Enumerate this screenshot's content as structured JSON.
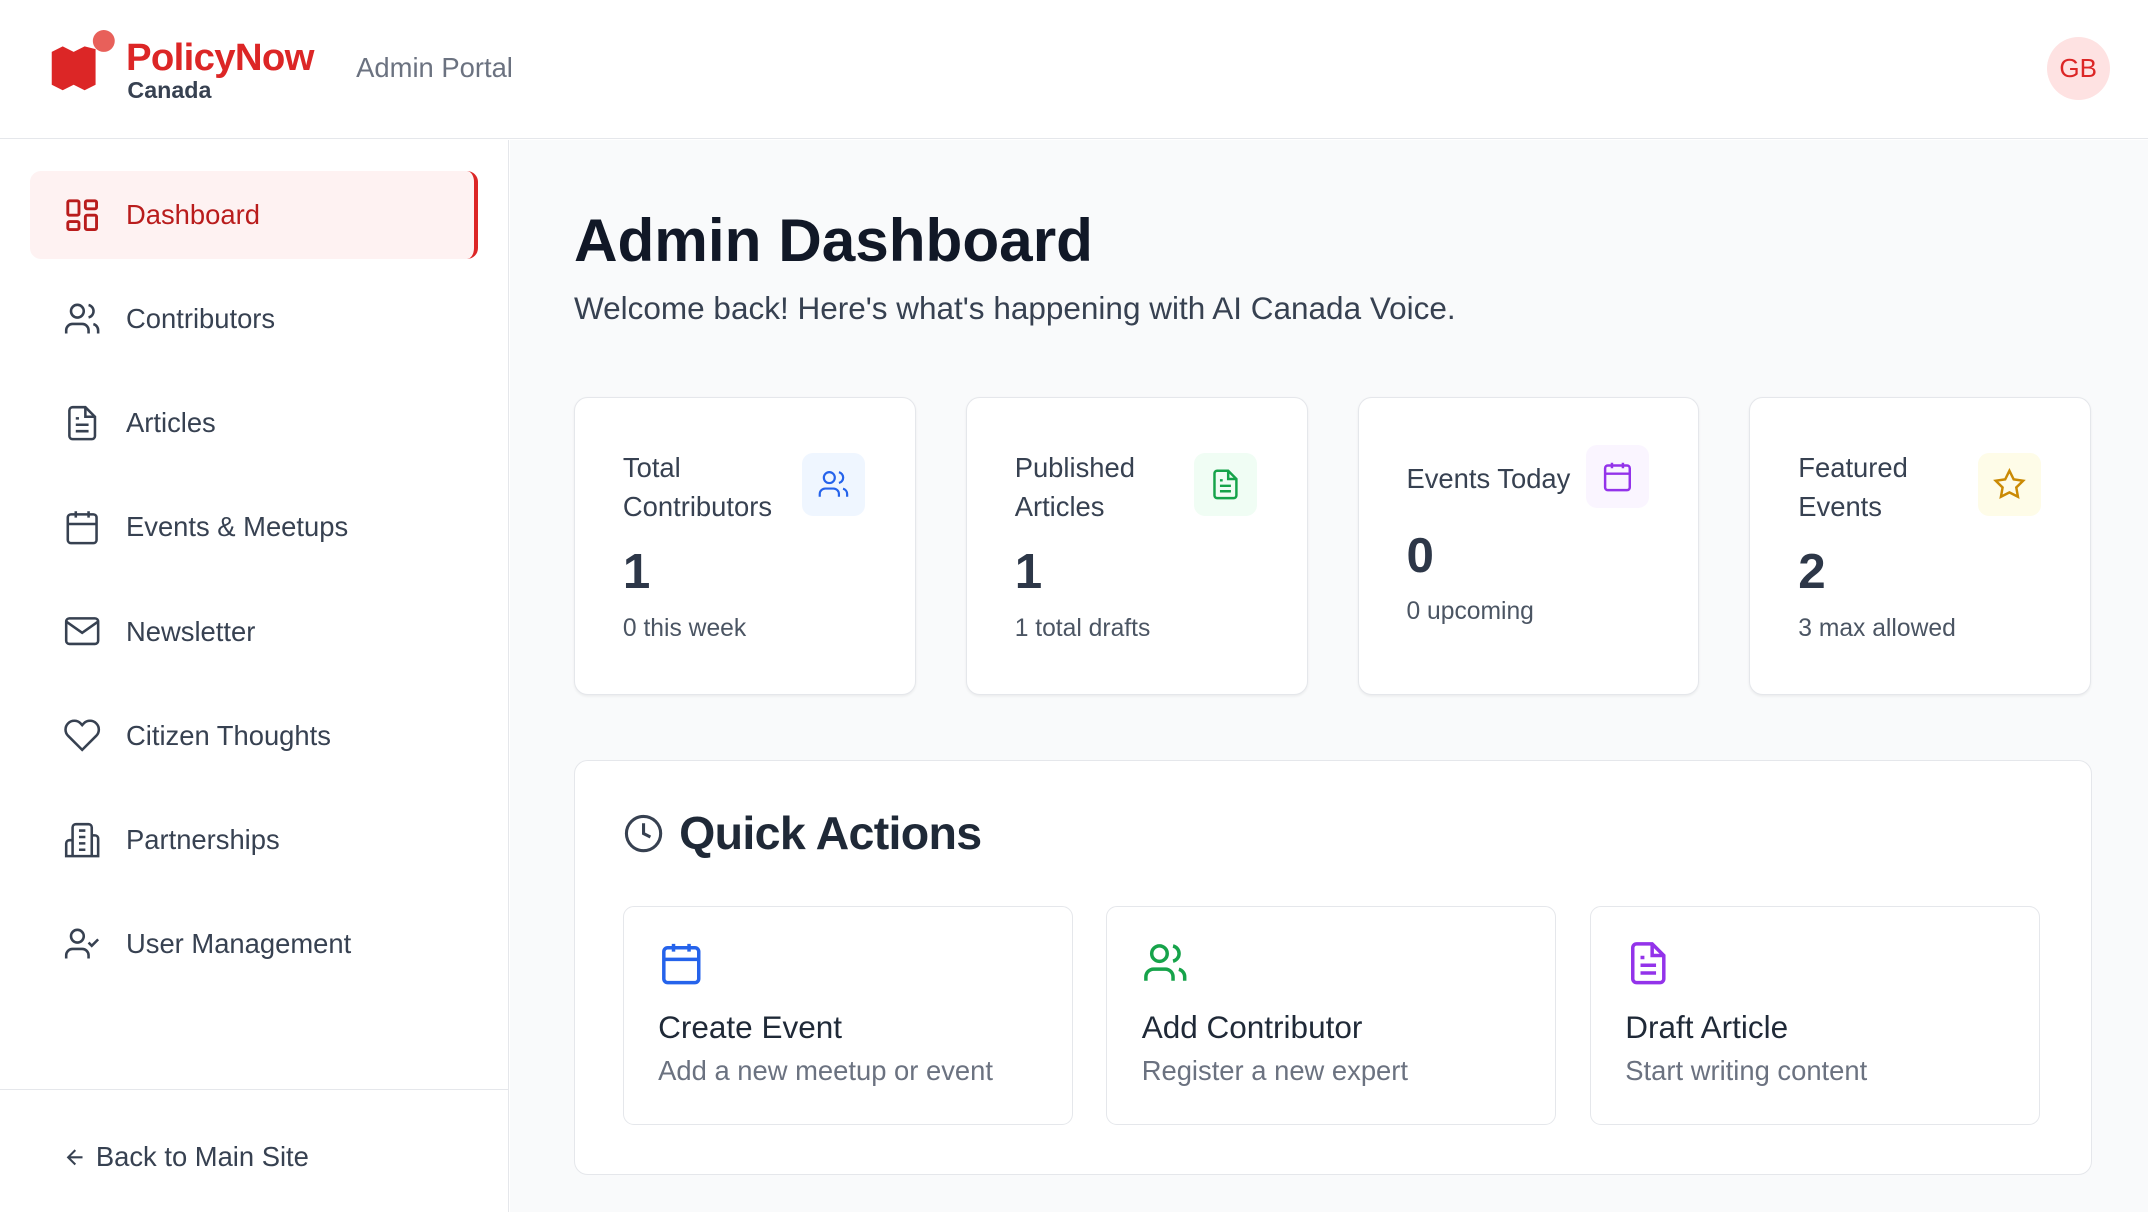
{
  "header": {
    "brand": "PolicyNow",
    "brand_sub": "Canada",
    "portal": "Admin Portal",
    "avatar": "GB"
  },
  "sidebar": {
    "items": [
      {
        "label": "Dashboard",
        "icon": "grid-icon",
        "active": true
      },
      {
        "label": "Contributors",
        "icon": "users-icon"
      },
      {
        "label": "Articles",
        "icon": "file-text-icon"
      },
      {
        "label": "Events & Meetups",
        "icon": "calendar-icon"
      },
      {
        "label": "Newsletter",
        "icon": "mail-icon"
      },
      {
        "label": "Citizen Thoughts",
        "icon": "heart-icon"
      },
      {
        "label": "Partnerships",
        "icon": "building-icon"
      },
      {
        "label": "User Management",
        "icon": "user-check-icon"
      }
    ],
    "back": "Back to Main Site"
  },
  "main": {
    "title": "Admin Dashboard",
    "subtitle": "Welcome back! Here's what's happening with AI Canada Voice.",
    "stats": [
      {
        "label": "Total Contributors",
        "value": "1",
        "note": "0 this week",
        "icon": "users-icon",
        "color": "#2563eb",
        "bg": "#eff6ff"
      },
      {
        "label": "Published Articles",
        "value": "1",
        "note": "1 total drafts",
        "icon": "file-text-icon",
        "color": "#16a34a",
        "bg": "#f0fdf4"
      },
      {
        "label": "Events Today",
        "value": "0",
        "note": "0 upcoming",
        "icon": "calendar-icon",
        "color": "#9333ea",
        "bg": "#faf5ff"
      },
      {
        "label": "Featured Events",
        "value": "2",
        "note": "3 max allowed",
        "icon": "star-icon",
        "color": "#ca8a04",
        "bg": "#fefce8"
      }
    ],
    "quick_actions": {
      "title": "Quick Actions",
      "items": [
        {
          "name": "Create Event",
          "desc": "Add a new meetup or event",
          "icon": "calendar-icon",
          "color": "#2563eb"
        },
        {
          "name": "Add Contributor",
          "desc": "Register a new expert",
          "icon": "users-icon",
          "color": "#16a34a"
        },
        {
          "name": "Draft Article",
          "desc": "Start writing content",
          "icon": "file-text-icon",
          "color": "#9333ea"
        }
      ]
    }
  }
}
